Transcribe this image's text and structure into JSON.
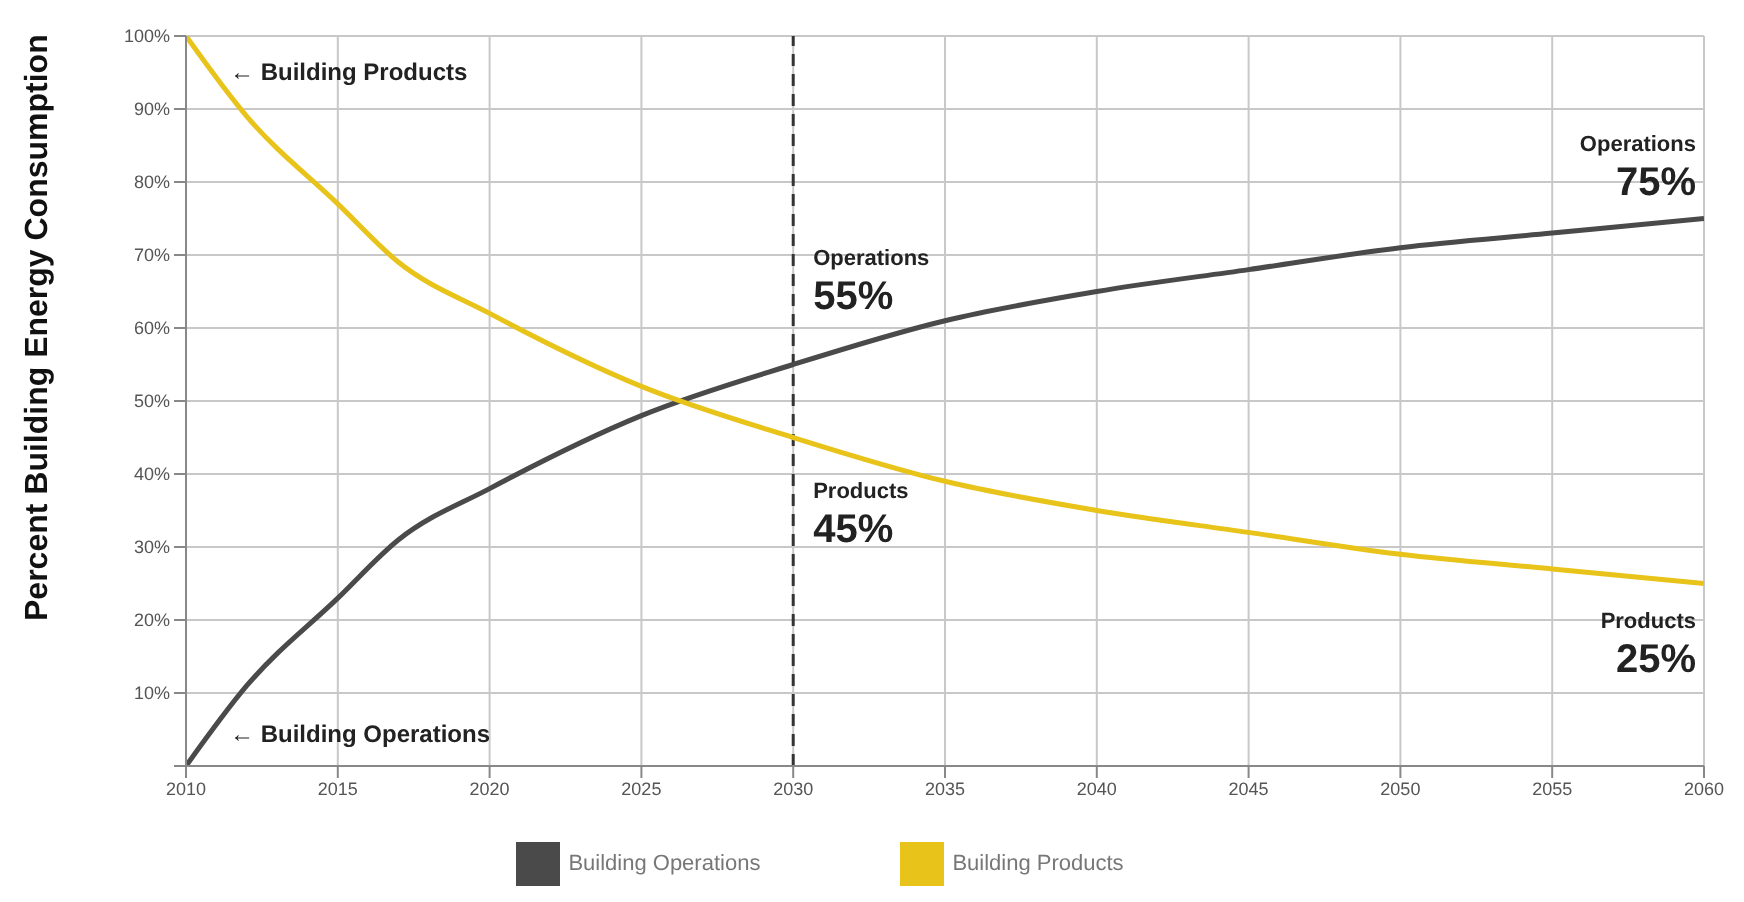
{
  "chart_data": {
    "type": "line",
    "ylabel": "Percent Building Energy Consumption",
    "x": [
      2010,
      2012,
      2015,
      2017,
      2020,
      2025,
      2030,
      2035,
      2040,
      2045,
      2050,
      2055,
      2060
    ],
    "series": [
      {
        "name": "Building Operations",
        "color": "#4a4a4a",
        "values": [
          0,
          11,
          23,
          31,
          38,
          48,
          55,
          61,
          65,
          68,
          71,
          73,
          75
        ]
      },
      {
        "name": "Building Products",
        "color": "#e8c31a",
        "values": [
          100,
          89,
          77,
          69,
          62,
          52,
          45,
          39,
          35,
          32,
          29,
          27,
          25
        ]
      }
    ],
    "xlim": [
      2010,
      2060
    ],
    "xticks": [
      2010,
      2015,
      2020,
      2025,
      2030,
      2035,
      2040,
      2045,
      2050,
      2055,
      2060
    ],
    "ylim": [
      0,
      100
    ],
    "yticks": [
      {
        "value": 0,
        "label": null
      },
      {
        "value": 10,
        "label": "10%"
      },
      {
        "value": 20,
        "label": "20%"
      },
      {
        "value": 30,
        "label": "30%"
      },
      {
        "value": 40,
        "label": "40%"
      },
      {
        "value": 50,
        "label": "50%"
      },
      {
        "value": 60,
        "label": "60%"
      },
      {
        "value": 70,
        "label": "70%"
      },
      {
        "value": 80,
        "label": "80%"
      },
      {
        "value": 90,
        "label": "90%"
      },
      {
        "value": 100,
        "label": "100%"
      }
    ],
    "ref_lines": [
      {
        "axis": "x",
        "value": 2030,
        "line_style": "dashed",
        "color": "#333333"
      }
    ],
    "annotations": [
      {
        "text": "← Building Products",
        "x": 2010,
        "y": 100
      },
      {
        "text": "← Building Operations",
        "x": 2010,
        "y": 0
      },
      {
        "text": "Operations 55%",
        "x": 2030,
        "y": 55
      },
      {
        "text": "Products 45%",
        "x": 2030,
        "y": 45
      },
      {
        "text": "Operations 75%",
        "x": 2060,
        "y": 75
      },
      {
        "text": "Products 25%",
        "x": 2060,
        "y": 25
      }
    ],
    "grid": true,
    "legend": "bottom",
    "marker": "none",
    "line_style": "solid"
  }
}
